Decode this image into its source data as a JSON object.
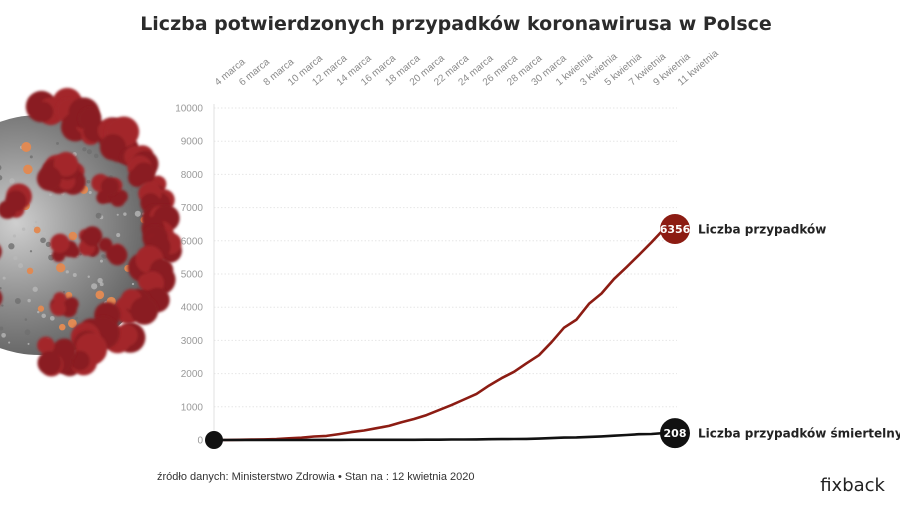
{
  "chart_data": {
    "type": "line",
    "title": "Liczba potwierdzonych przypadków koronawirusa w Polsce",
    "x_tick_labels": [
      "4 marca",
      "6 marca",
      "8 marca",
      "10 marca",
      "12 marca",
      "14 marca",
      "16 marca",
      "18 marca",
      "20 marca",
      "22 marca",
      "24 marca",
      "26 marca",
      "28 marca",
      "30 marca",
      "1 kwietnia",
      "3 kwietnia",
      "5 kwietnia",
      "7 kwietnia",
      "9 kwietnia",
      "11 kwietnia"
    ],
    "y_ticks": [
      0,
      1000,
      2000,
      3000,
      4000,
      5000,
      6000,
      7000,
      8000,
      9000,
      10000
    ],
    "ylim": [
      0,
      10000
    ],
    "grid": true,
    "series": [
      {
        "name": "Liczba przypadków",
        "color": "#8c1c13",
        "values": [
          1,
          1,
          5,
          11,
          17,
          31,
          51,
          68,
          104,
          125,
          177,
          238,
          287,
          355,
          425,
          536,
          634,
          749,
          901,
          1051,
          1221,
          1389,
          1638,
          1862,
          2055,
          2311,
          2554,
          2946,
          3383,
          3627,
          4102,
          4413,
          4848,
          5205,
          5575,
          5955,
          6356
        ],
        "end_label": "6356"
      },
      {
        "name": "Liczba przypadków śmiertelnych",
        "color": "#111111",
        "values": [
          0,
          0,
          0,
          0,
          0,
          0,
          0,
          1,
          2,
          3,
          3,
          5,
          5,
          5,
          5,
          7,
          7,
          8,
          10,
          14,
          16,
          18,
          23,
          26,
          31,
          33,
          43,
          57,
          71,
          79,
          94,
          107,
          129,
          152,
          174,
          181,
          208
        ],
        "end_label": "208"
      }
    ],
    "start_marker": "0"
  },
  "source": "źródło danych: Ministerstwo Zdrowia • Stan na : 12 kwietnia 2020",
  "logo": "fixback"
}
